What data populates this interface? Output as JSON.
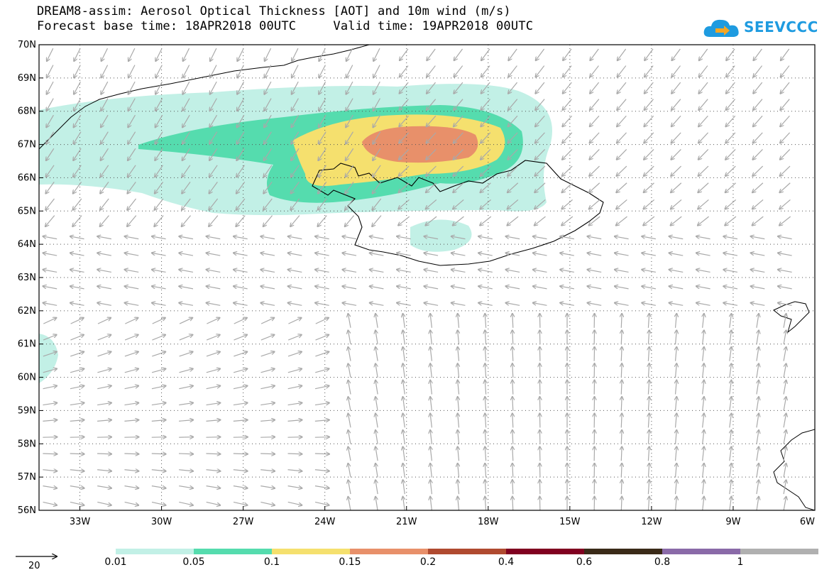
{
  "title_line1": "DREAM8-assim: Aerosol Optical Thickness [AOT] and 10m wind (m/s)",
  "title_line2": "Forecast base time: 18APR2018 00UTC     Valid time: 19APR2018 00UTC",
  "logo_text": "SEEVCCC",
  "icons": {
    "logo": "cloud-arrow-icon"
  },
  "map": {
    "lon_min": -34.5,
    "lon_max": -6,
    "lat_min": 56,
    "lat_max": 70,
    "lat_ticks": [
      "70N",
      "69N",
      "68N",
      "67N",
      "66N",
      "65N",
      "64N",
      "63N",
      "62N",
      "61N",
      "60N",
      "59N",
      "58N",
      "57N",
      "56N"
    ],
    "lon_ticks": [
      "33W",
      "30W",
      "27W",
      "24W",
      "21W",
      "18W",
      "15W",
      "12W",
      "9W",
      "6W"
    ],
    "wind_arrow_color": "#a9a9a9",
    "coastline_color": "#000000"
  },
  "colorbar": {
    "labels": [
      "0.01",
      "0.05",
      "0.1",
      "0.15",
      "0.2",
      "0.4",
      "0.6",
      "0.8",
      "1"
    ],
    "colors": [
      "#c2f0e6",
      "#55dcae",
      "#f5e06e",
      "#e8906a",
      "#b04a30",
      "#800020",
      "#3a2a18",
      "#8a6aa8",
      "#b0b0b0"
    ]
  },
  "wind_scale": {
    "label": "20",
    "unit": "m/s"
  }
}
